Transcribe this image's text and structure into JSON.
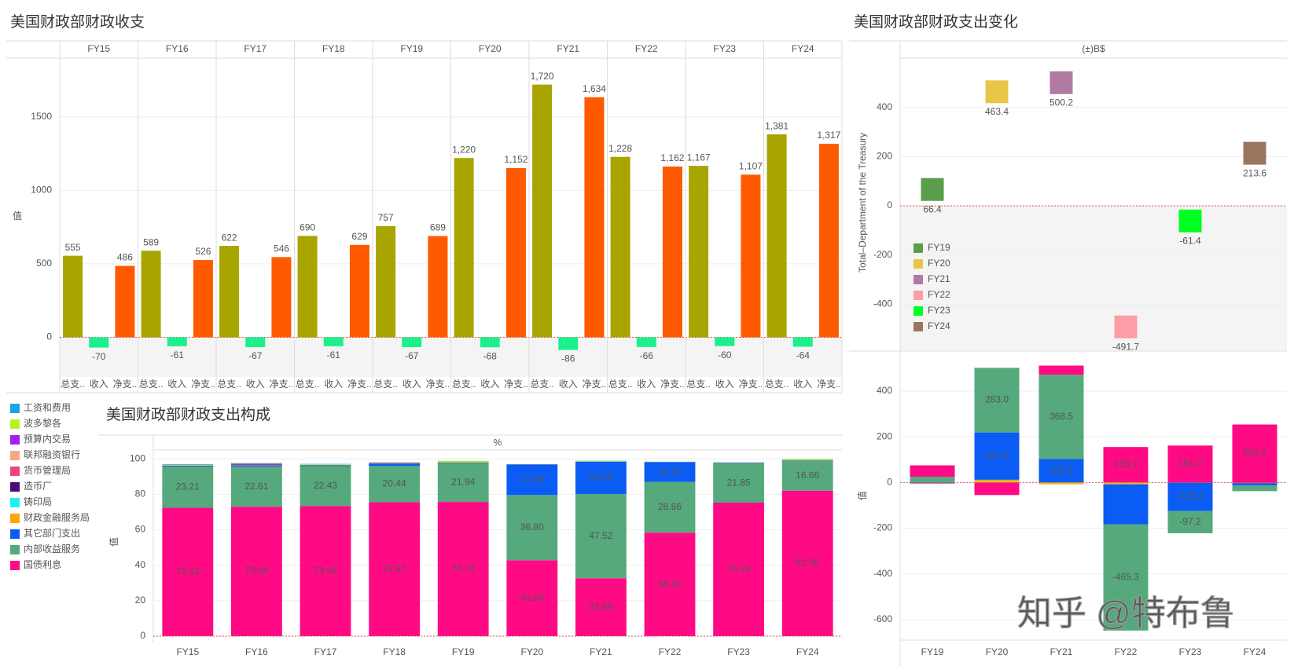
{
  "chart_data": [
    {
      "type": "grouped_panel_bar",
      "title": "美国财政部财政收支",
      "y_label": "值",
      "panels": [
        "FY15",
        "FY16",
        "FY17",
        "FY18",
        "FY19",
        "FY20",
        "FY21",
        "FY22",
        "FY23",
        "FY24"
      ],
      "ylim": [
        -270,
        1900
      ],
      "yticks": [
        0,
        500,
        1000,
        1500
      ],
      "grid": true,
      "series": [
        {
          "name": "总支..",
          "color": "#a8a400",
          "values": [
            555,
            589,
            622,
            690,
            757,
            1220,
            1720,
            1228,
            1167,
            1381
          ],
          "value_labels": [
            "555",
            "589",
            "622",
            "690",
            "757",
            "1,220",
            "1,720",
            "1,228",
            "1,167",
            "1,381"
          ]
        },
        {
          "name": "收入",
          "color": "#1cf08c",
          "values": [
            -70,
            -61,
            -67,
            -61,
            -67,
            -68,
            -86,
            -66,
            -60,
            -64
          ]
        },
        {
          "name": "净支..",
          "color": "#ff5a00",
          "values": [
            486,
            526,
            546,
            629,
            689,
            1152,
            1634,
            1162,
            1107,
            1317
          ],
          "value_labels": [
            "486",
            "526",
            "546",
            "629",
            "689",
            "1,152",
            "1,634",
            "1,162",
            "1,107",
            "1,317"
          ]
        }
      ]
    },
    {
      "type": "stacked_bar",
      "title": "美国财政部财政支出构成",
      "header": "%",
      "y_label": "值",
      "categories": [
        "FY15",
        "FY16",
        "FY17",
        "FY18",
        "FY19",
        "FY20",
        "FY21",
        "FY22",
        "FY23",
        "FY24"
      ],
      "ylim": [
        0,
        105
      ],
      "yticks": [
        0,
        20,
        40,
        60,
        80,
        100
      ],
      "grid": true,
      "legend": "left",
      "series": [
        {
          "name": "工资和费用",
          "color": "#1ba3e8",
          "values": [
            0.3,
            0.2,
            0.2,
            0.2,
            0.1,
            0,
            0.1,
            0.1,
            0.2,
            0.1
          ]
        },
        {
          "name": "波多黎各",
          "color": "#b5f21f",
          "values": [
            0.3,
            0.2,
            0.3,
            0,
            0.6,
            0,
            0.3,
            0,
            0.2,
            0.6
          ]
        },
        {
          "name": "预算内交易",
          "color": "#a020f0",
          "values": [
            0,
            0.3,
            0,
            0,
            0,
            0,
            0,
            0,
            0,
            0
          ]
        },
        {
          "name": "联邦融资银行",
          "color": "#f7a880",
          "values": [
            0,
            0,
            0,
            0,
            0,
            0,
            0,
            0,
            0,
            0
          ]
        },
        {
          "name": "货币管理局",
          "color": "#f0457a",
          "values": [
            0,
            0,
            0,
            0,
            0,
            0,
            0,
            0,
            0,
            0
          ]
        },
        {
          "name": "造币厂",
          "color": "#4b0a7a",
          "values": [
            0,
            0.3,
            0,
            0.3,
            0,
            0,
            0,
            0,
            0,
            0
          ]
        },
        {
          "name": "铸印局",
          "color": "#1ef0f0",
          "values": [
            0,
            0,
            0,
            0,
            0,
            0,
            0,
            0,
            0,
            0
          ]
        },
        {
          "name": "财政金融服务局",
          "color": "#ffa500",
          "values": [
            0.2,
            0.2,
            0.2,
            0.2,
            0.2,
            0.1,
            0.1,
            0.1,
            0.2,
            0.2
          ]
        },
        {
          "name": "其它部门支出",
          "color": "#0a5cf5",
          "values": [
            0.6,
            0.8,
            0.6,
            1.2,
            0.3,
            17.28,
            18.25,
            11.14,
            0.4,
            0.3
          ],
          "value_labels": [
            null,
            null,
            null,
            null,
            null,
            "17.28",
            "18.25",
            "11.14",
            null,
            null
          ],
          "label_color": "#ffffff"
        },
        {
          "name": "内部收益服务",
          "color": "#55a97c",
          "values": [
            23.21,
            22.61,
            22.43,
            20.44,
            21.94,
            36.8,
            47.52,
            28.66,
            21.85,
            16.66
          ],
          "value_labels": [
            "23.21",
            "22.61",
            "22.43",
            "20.44",
            "21.94",
            "36.80",
            "47.52",
            "28.66",
            "21.85",
            "16.66"
          ],
          "label_color": "#222222"
        },
        {
          "name": "国债利息",
          "color": "#ff0a85",
          "values": [
            72.42,
            73.04,
            73.44,
            75.57,
            75.72,
            42.84,
            32.69,
            58.41,
            75.34,
            82.06
          ],
          "value_labels": [
            "72.42",
            "73.04",
            "73.44",
            "75.57",
            "75.72",
            "42.84",
            "32.69",
            "58.41",
            "75.34",
            "82.06"
          ],
          "label_color": "#ffffff"
        }
      ]
    },
    {
      "type": "marker",
      "title": "美国财政部财政支出变化",
      "header": "(±)B$",
      "y_label": "Total–Department of the Treasury",
      "categories": [
        "FY19",
        "FY20",
        "FY21",
        "FY22",
        "FY23",
        "FY24"
      ],
      "values": [
        66.4,
        463.4,
        500.2,
        -491.7,
        -61.4,
        213.6
      ],
      "colors": [
        "#5a9e4b",
        "#e8c547",
        "#b07aa1",
        "#ff9da7",
        "#00ff22",
        "#9c755f"
      ],
      "ylim": [
        -590,
        600
      ],
      "yticks": [
        -400,
        -200,
        0,
        200,
        400
      ],
      "grid": true,
      "legend": "left"
    },
    {
      "type": "diverging_stacked_bar",
      "y_label": "值",
      "categories": [
        "FY19",
        "FY20",
        "FY21",
        "FY22",
        "FY23",
        "FY24"
      ],
      "ylim": [
        -690,
        565
      ],
      "yticks": [
        -600,
        -400,
        -200,
        0,
        200,
        400
      ],
      "grid": true,
      "series": [
        {
          "color": "#1ba3e8",
          "values": [
            0,
            0,
            0,
            0,
            0,
            0
          ]
        },
        {
          "color": "#b5f21f",
          "values": [
            0,
            4,
            -3,
            -3,
            0,
            0
          ]
        },
        {
          "color": "#a020f0",
          "values": [
            -2,
            0,
            0,
            0,
            0,
            -3
          ]
        },
        {
          "color": "#f7a880",
          "values": [
            0,
            0,
            0,
            0,
            0,
            0
          ]
        },
        {
          "color": "#f0457a",
          "values": [
            0,
            0,
            0,
            0,
            0,
            0
          ]
        },
        {
          "color": "#4b0a7a",
          "values": [
            -2,
            0,
            0,
            0,
            0,
            -2
          ]
        },
        {
          "color": "#1ef0f0",
          "values": [
            0,
            0,
            0,
            0,
            0,
            0
          ]
        },
        {
          "color": "#ffa500",
          "values": [
            0,
            8,
            -5,
            -5,
            0,
            0
          ]
        },
        {
          "color": "#0a5cf5",
          "values": [
            0,
            207.0,
            103.1,
            -175,
            -125.1,
            -8
          ],
          "value_labels": [
            null,
            "207.0",
            "103.1",
            null,
            "-125.1",
            null
          ],
          "label_color": "#ffffff"
        },
        {
          "color": "#55a97c",
          "values": [
            25,
            283.0,
            368.5,
            -465.3,
            -97.2,
            -25
          ],
          "value_labels": [
            null,
            "283.0",
            "368.5",
            "-465.3",
            "-97.2",
            null
          ],
          "label_color": "#222222"
        },
        {
          "color": "#ff0a85",
          "values": [
            50,
            -55,
            40,
            155.2,
            161.7,
            253.7
          ],
          "value_labels": [
            null,
            null,
            null,
            "155.2",
            "161.7",
            "253.7"
          ],
          "label_color": "#ffffff"
        }
      ]
    }
  ],
  "watermark": "知乎 @特布鲁"
}
